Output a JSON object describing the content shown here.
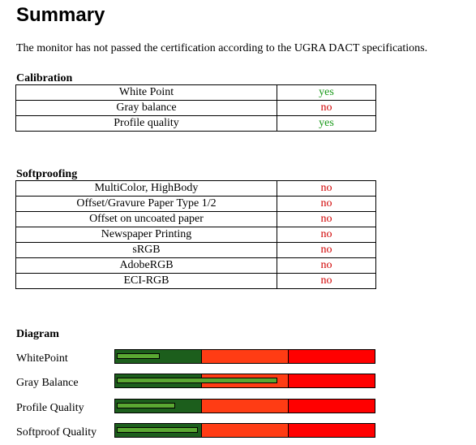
{
  "title": "Summary",
  "intro": "The monitor has not passed the certification according to the UGRA DACT specifications.",
  "calibration": {
    "label": "Calibration",
    "rows": [
      {
        "name": "White Point",
        "value": "yes"
      },
      {
        "name": "Gray balance",
        "value": "no"
      },
      {
        "name": "Profile quality",
        "value": "yes"
      }
    ]
  },
  "softproofing": {
    "label": "Softproofing",
    "rows": [
      {
        "name": "MultiColor, HighBody",
        "value": "no"
      },
      {
        "name": "Offset/Gravure Paper Type 1/2",
        "value": "no"
      },
      {
        "name": "Offset on uncoated paper",
        "value": "no"
      },
      {
        "name": "Newspaper Printing",
        "value": "no"
      },
      {
        "name": "sRGB",
        "value": "no"
      },
      {
        "name": "AdobeRGB",
        "value": "no"
      },
      {
        "name": "ECI-RGB",
        "value": "no"
      }
    ]
  },
  "diagram": {
    "label": "Diagram",
    "zone_colors": [
      "#1c5e1c",
      "#ff3c14",
      "#ff0000"
    ],
    "fill_color": "#5aa832",
    "rows": [
      {
        "label": "WhitePoint",
        "level": 0.16
      },
      {
        "label": "Gray Balance",
        "level": 0.62
      },
      {
        "label": "Profile Quality",
        "level": 0.22
      },
      {
        "label": "Softproof Quality",
        "level": 0.31
      }
    ]
  }
}
